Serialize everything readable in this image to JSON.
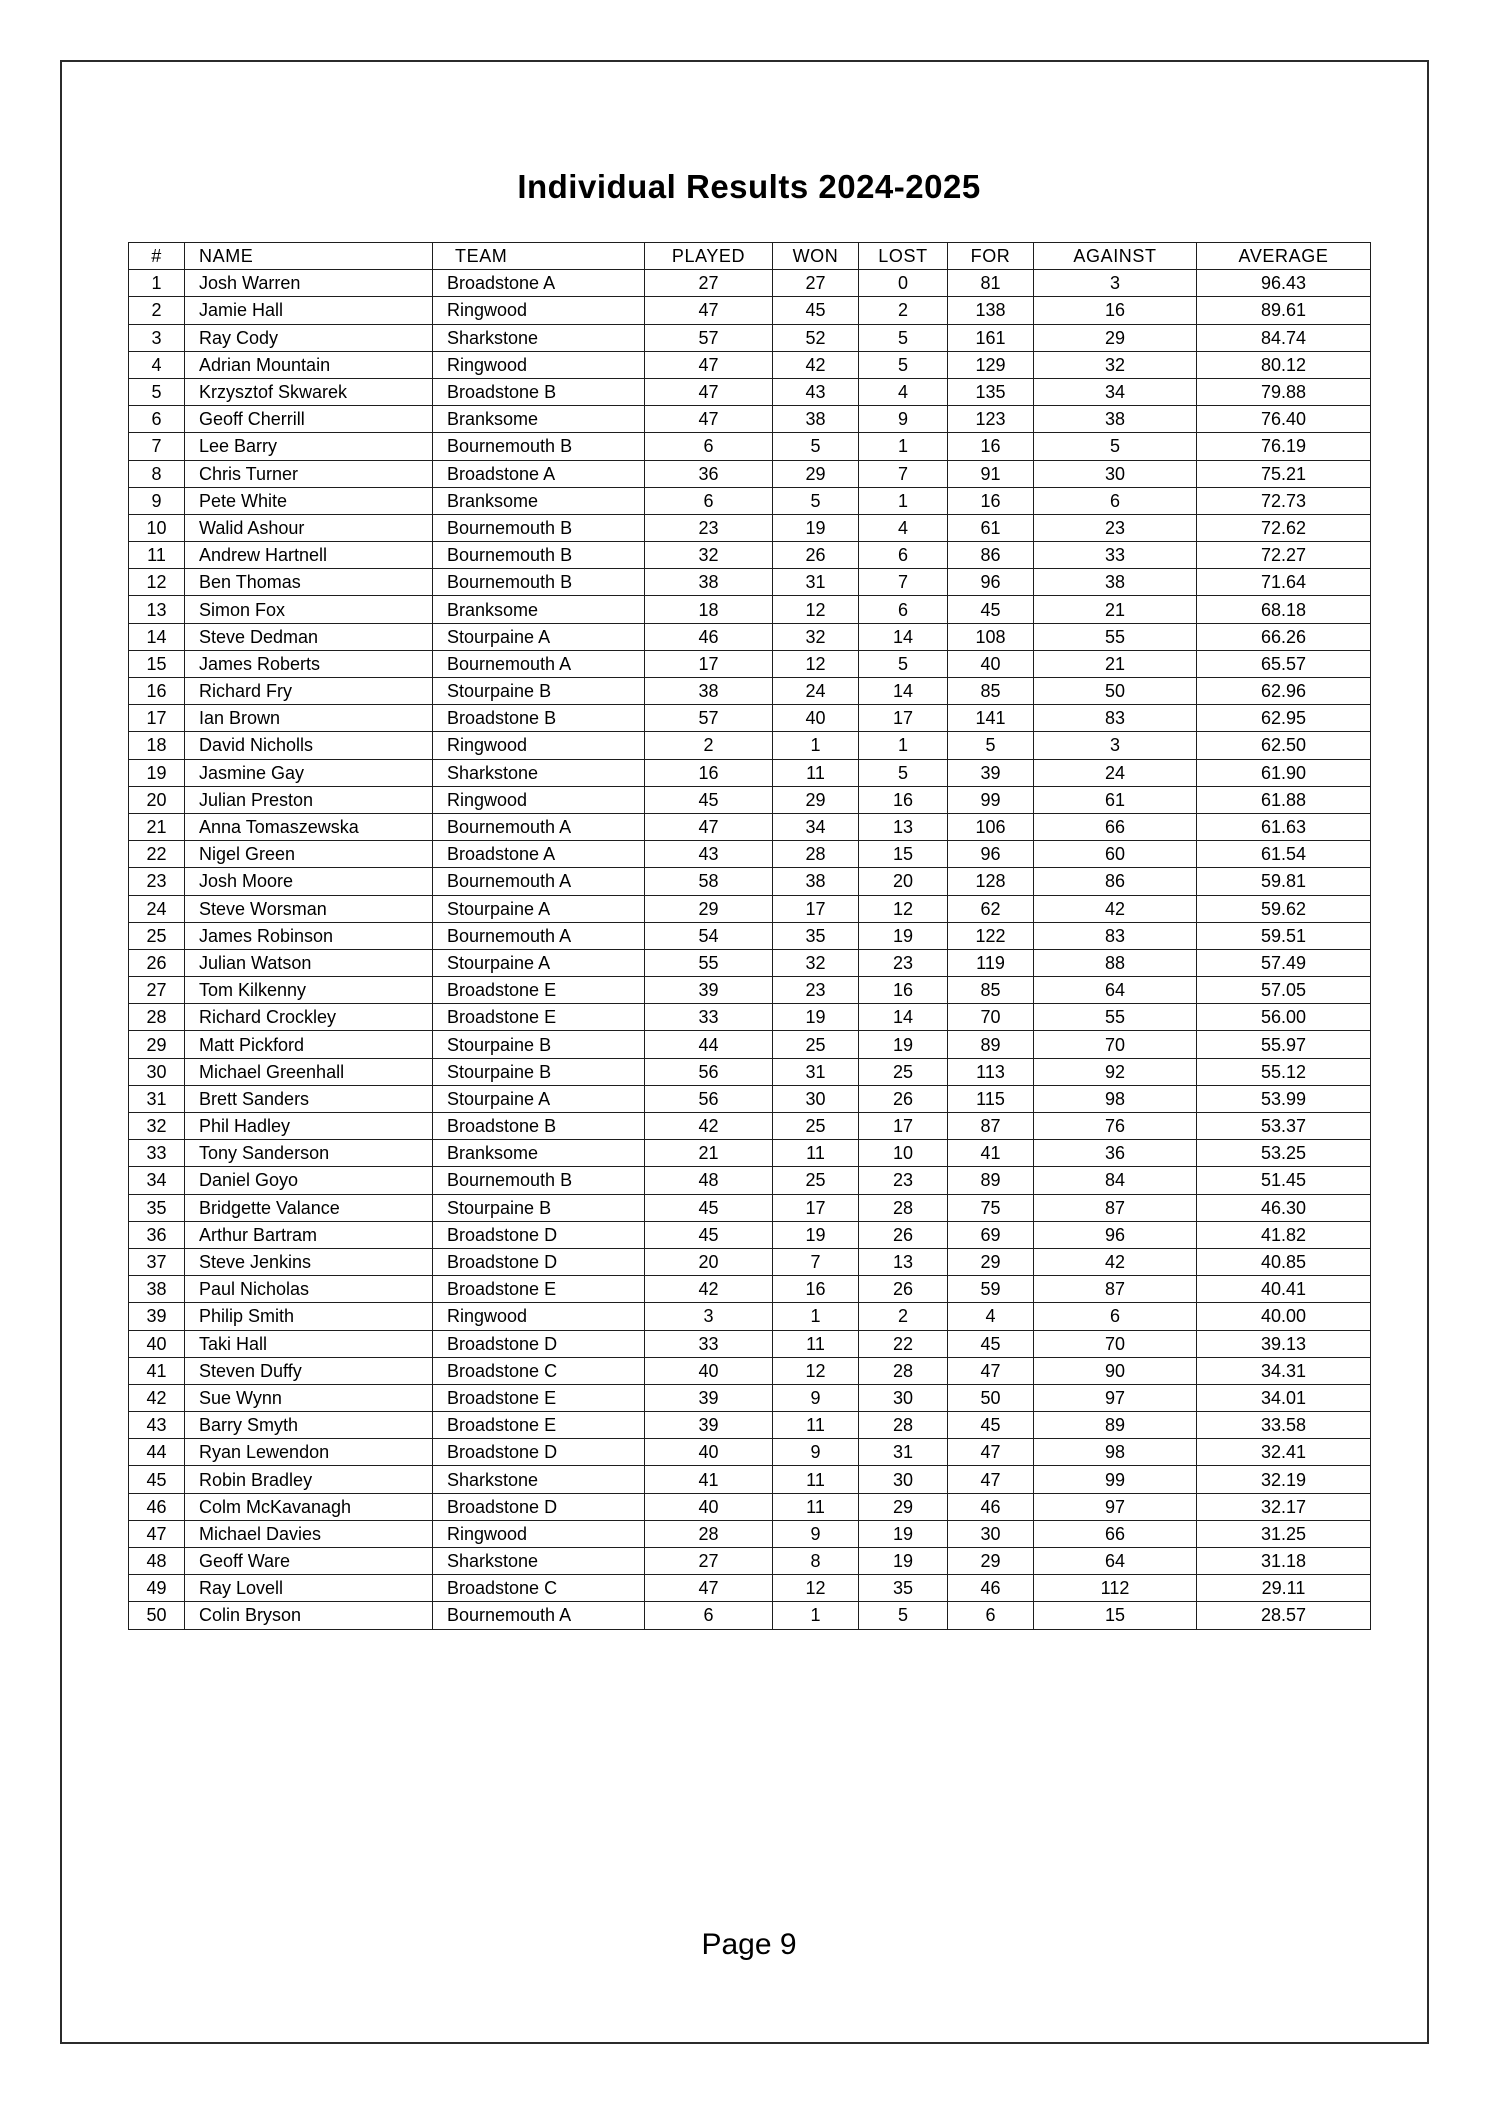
{
  "page": {
    "title": "Individual Results 2024-2025",
    "page_number_label": "Page 9"
  },
  "table": {
    "columns": [
      "#",
      "NAME",
      "TEAM",
      "PLAYED",
      "WON",
      "LOST",
      "FOR",
      "AGAINST",
      "AVERAGE"
    ],
    "rows": [
      [
        "1",
        "Josh Warren",
        "Broadstone A",
        "27",
        "27",
        "0",
        "81",
        "3",
        "96.43"
      ],
      [
        "2",
        "Jamie Hall",
        "Ringwood",
        "47",
        "45",
        "2",
        "138",
        "16",
        "89.61"
      ],
      [
        "3",
        "Ray Cody",
        "Sharkstone",
        "57",
        "52",
        "5",
        "161",
        "29",
        "84.74"
      ],
      [
        "4",
        "Adrian Mountain",
        "Ringwood",
        "47",
        "42",
        "5",
        "129",
        "32",
        "80.12"
      ],
      [
        "5",
        "Krzysztof Skwarek",
        "Broadstone B",
        "47",
        "43",
        "4",
        "135",
        "34",
        "79.88"
      ],
      [
        "6",
        "Geoff Cherrill",
        "Branksome",
        "47",
        "38",
        "9",
        "123",
        "38",
        "76.40"
      ],
      [
        "7",
        "Lee Barry",
        "Bournemouth B",
        "6",
        "5",
        "1",
        "16",
        "5",
        "76.19"
      ],
      [
        "8",
        "Chris Turner",
        "Broadstone A",
        "36",
        "29",
        "7",
        "91",
        "30",
        "75.21"
      ],
      [
        "9",
        "Pete White",
        "Branksome",
        "6",
        "5",
        "1",
        "16",
        "6",
        "72.73"
      ],
      [
        "10",
        "Walid Ashour",
        "Bournemouth B",
        "23",
        "19",
        "4",
        "61",
        "23",
        "72.62"
      ],
      [
        "11",
        "Andrew Hartnell",
        "Bournemouth B",
        "32",
        "26",
        "6",
        "86",
        "33",
        "72.27"
      ],
      [
        "12",
        "Ben Thomas",
        "Bournemouth B",
        "38",
        "31",
        "7",
        "96",
        "38",
        "71.64"
      ],
      [
        "13",
        "Simon Fox",
        "Branksome",
        "18",
        "12",
        "6",
        "45",
        "21",
        "68.18"
      ],
      [
        "14",
        "Steve Dedman",
        "Stourpaine A",
        "46",
        "32",
        "14",
        "108",
        "55",
        "66.26"
      ],
      [
        "15",
        "James Roberts",
        "Bournemouth A",
        "17",
        "12",
        "5",
        "40",
        "21",
        "65.57"
      ],
      [
        "16",
        "Richard Fry",
        "Stourpaine B",
        "38",
        "24",
        "14",
        "85",
        "50",
        "62.96"
      ],
      [
        "17",
        "Ian Brown",
        "Broadstone B",
        "57",
        "40",
        "17",
        "141",
        "83",
        "62.95"
      ],
      [
        "18",
        "David Nicholls",
        "Ringwood",
        "2",
        "1",
        "1",
        "5",
        "3",
        "62.50"
      ],
      [
        "19",
        "Jasmine Gay",
        "Sharkstone",
        "16",
        "11",
        "5",
        "39",
        "24",
        "61.90"
      ],
      [
        "20",
        "Julian Preston",
        "Ringwood",
        "45",
        "29",
        "16",
        "99",
        "61",
        "61.88"
      ],
      [
        "21",
        "Anna Tomaszewska",
        "Bournemouth A",
        "47",
        "34",
        "13",
        "106",
        "66",
        "61.63"
      ],
      [
        "22",
        "Nigel Green",
        "Broadstone A",
        "43",
        "28",
        "15",
        "96",
        "60",
        "61.54"
      ],
      [
        "23",
        "Josh Moore",
        "Bournemouth A",
        "58",
        "38",
        "20",
        "128",
        "86",
        "59.81"
      ],
      [
        "24",
        "Steve Worsman",
        "Stourpaine A",
        "29",
        "17",
        "12",
        "62",
        "42",
        "59.62"
      ],
      [
        "25",
        "James Robinson",
        "Bournemouth A",
        "54",
        "35",
        "19",
        "122",
        "83",
        "59.51"
      ],
      [
        "26",
        "Julian Watson",
        "Stourpaine A",
        "55",
        "32",
        "23",
        "119",
        "88",
        "57.49"
      ],
      [
        "27",
        "Tom Kilkenny",
        "Broadstone E",
        "39",
        "23",
        "16",
        "85",
        "64",
        "57.05"
      ],
      [
        "28",
        "Richard Crockley",
        "Broadstone E",
        "33",
        "19",
        "14",
        "70",
        "55",
        "56.00"
      ],
      [
        "29",
        "Matt Pickford",
        "Stourpaine B",
        "44",
        "25",
        "19",
        "89",
        "70",
        "55.97"
      ],
      [
        "30",
        "Michael Greenhall",
        "Stourpaine B",
        "56",
        "31",
        "25",
        "113",
        "92",
        "55.12"
      ],
      [
        "31",
        "Brett Sanders",
        "Stourpaine A",
        "56",
        "30",
        "26",
        "115",
        "98",
        "53.99"
      ],
      [
        "32",
        "Phil Hadley",
        "Broadstone B",
        "42",
        "25",
        "17",
        "87",
        "76",
        "53.37"
      ],
      [
        "33",
        "Tony Sanderson",
        "Branksome",
        "21",
        "11",
        "10",
        "41",
        "36",
        "53.25"
      ],
      [
        "34",
        "Daniel Goyo",
        "Bournemouth B",
        "48",
        "25",
        "23",
        "89",
        "84",
        "51.45"
      ],
      [
        "35",
        "Bridgette Valance",
        "Stourpaine B",
        "45",
        "17",
        "28",
        "75",
        "87",
        "46.30"
      ],
      [
        "36",
        "Arthur Bartram",
        "Broadstone D",
        "45",
        "19",
        "26",
        "69",
        "96",
        "41.82"
      ],
      [
        "37",
        "Steve Jenkins",
        "Broadstone D",
        "20",
        "7",
        "13",
        "29",
        "42",
        "40.85"
      ],
      [
        "38",
        "Paul Nicholas",
        "Broadstone E",
        "42",
        "16",
        "26",
        "59",
        "87",
        "40.41"
      ],
      [
        "39",
        "Philip Smith",
        "Ringwood",
        "3",
        "1",
        "2",
        "4",
        "6",
        "40.00"
      ],
      [
        "40",
        "Taki Hall",
        "Broadstone D",
        "33",
        "11",
        "22",
        "45",
        "70",
        "39.13"
      ],
      [
        "41",
        "Steven Duffy",
        "Broadstone C",
        "40",
        "12",
        "28",
        "47",
        "90",
        "34.31"
      ],
      [
        "42",
        "Sue Wynn",
        "Broadstone E",
        "39",
        "9",
        "30",
        "50",
        "97",
        "34.01"
      ],
      [
        "43",
        "Barry Smyth",
        "Broadstone E",
        "39",
        "11",
        "28",
        "45",
        "89",
        "33.58"
      ],
      [
        "44",
        "Ryan Lewendon",
        "Broadstone D",
        "40",
        "9",
        "31",
        "47",
        "98",
        "32.41"
      ],
      [
        "45",
        "Robin Bradley",
        "Sharkstone",
        "41",
        "11",
        "30",
        "47",
        "99",
        "32.19"
      ],
      [
        "46",
        "Colm McKavanagh",
        "Broadstone D",
        "40",
        "11",
        "29",
        "46",
        "97",
        "32.17"
      ],
      [
        "47",
        "Michael Davies",
        "Ringwood",
        "28",
        "9",
        "19",
        "30",
        "66",
        "31.25"
      ],
      [
        "48",
        "Geoff Ware",
        "Sharkstone",
        "27",
        "8",
        "19",
        "29",
        "64",
        "31.18"
      ],
      [
        "49",
        "Ray Lovell",
        "Broadstone C",
        "47",
        "12",
        "35",
        "46",
        "112",
        "29.11"
      ],
      [
        "50",
        "Colin Bryson",
        "Bournemouth A",
        "6",
        "1",
        "5",
        "6",
        "15",
        "28.57"
      ]
    ]
  }
}
